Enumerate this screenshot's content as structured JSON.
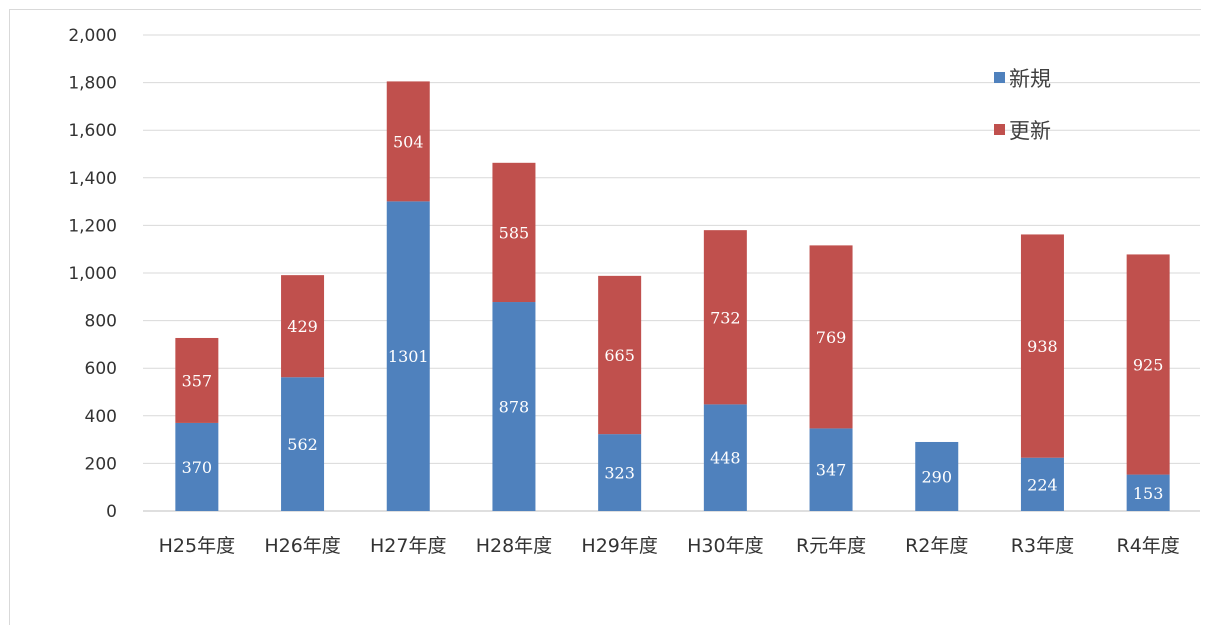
{
  "chart_data": {
    "type": "bar",
    "stacked": true,
    "categories": [
      "H25年度",
      "H26年度",
      "H27年度",
      "H28年度",
      "H29年度",
      "H30年度",
      "R元年度",
      "R2年度",
      "R3年度",
      "R4年度"
    ],
    "series": [
      {
        "name": "新規",
        "color": "#4f81bd",
        "values": [
          370,
          562,
          1301,
          878,
          323,
          448,
          347,
          290,
          224,
          153
        ]
      },
      {
        "name": "更新",
        "color": "#c0504d",
        "values": [
          357,
          429,
          504,
          585,
          665,
          732,
          769,
          0,
          938,
          925
        ]
      }
    ],
    "data_labels": {
      "新規": [
        "370",
        "562",
        "1301",
        "878",
        "323",
        "448",
        "347",
        "290",
        "224",
        "153"
      ],
      "更新": [
        "357",
        "429",
        "504",
        "585",
        "665",
        "732",
        "769",
        "",
        "938",
        "925"
      ]
    },
    "ylim": [
      0,
      2000
    ],
    "yticks": [
      0,
      200,
      400,
      600,
      800,
      1000,
      1200,
      1400,
      1600,
      1800,
      2000
    ],
    "ytick_labels": [
      "0",
      "200",
      "400",
      "600",
      "800",
      "1,000",
      "1,200",
      "1,400",
      "1,600",
      "1,800",
      "2,000"
    ],
    "grid": true,
    "legend_position": "top-right",
    "title": "",
    "xlabel": "",
    "ylabel": ""
  }
}
